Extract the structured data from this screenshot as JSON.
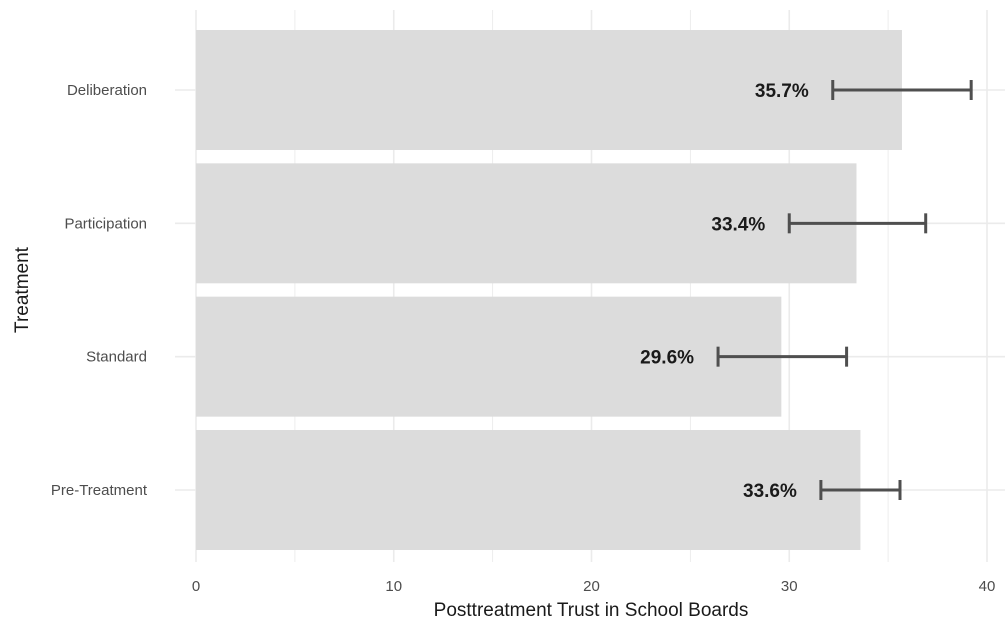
{
  "chart_data": {
    "type": "bar",
    "orientation": "horizontal",
    "categories": [
      "Deliberation",
      "Participation",
      "Standard",
      "Pre-Treatment"
    ],
    "values": [
      35.7,
      33.4,
      29.6,
      33.6
    ],
    "error_low": [
      32.2,
      30.0,
      26.4,
      31.6
    ],
    "error_high": [
      39.2,
      36.9,
      32.9,
      35.6
    ],
    "data_labels": [
      "35.7%",
      "33.4%",
      "29.6%",
      "33.6%"
    ],
    "xlabel": "Posttreatment Trust in School Boards",
    "ylabel": "Treatment",
    "xlim": [
      0,
      40
    ],
    "xticks": [
      0,
      10,
      20,
      30,
      40
    ],
    "grid": true,
    "colors": {
      "bar": "#dcdcdc",
      "errorbar": "#4f4f4f",
      "grid": "#ebebeb"
    }
  }
}
